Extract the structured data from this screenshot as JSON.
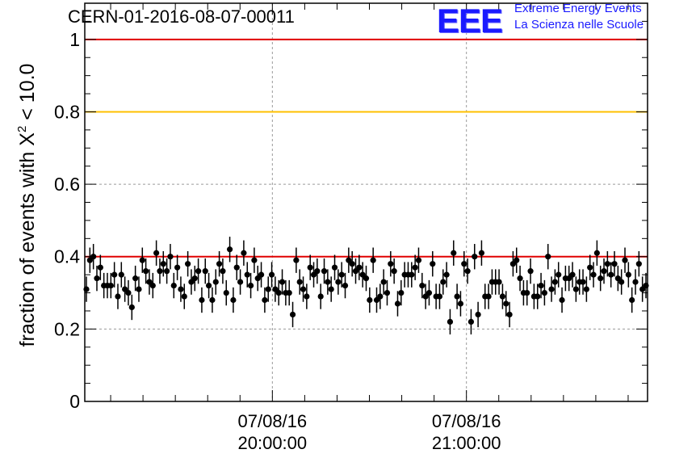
{
  "header": {
    "title": "CERN-01-2016-08-07-00011",
    "logo_mark": "EEE",
    "logo_line1": "Extreme Energy Events",
    "logo_line2": "La Scienza nelle Scuole"
  },
  "colors": {
    "red_line": "#e00000",
    "orange_line": "#ffc000",
    "markers": "#000000",
    "grid": "#9a9a9a",
    "brand": "#1a1aff"
  },
  "chart_data": {
    "type": "scatter",
    "title": "CERN-01-2016-08-07-00011",
    "ylabel_main": "fraction of events with X",
    "ylabel_sup": "2",
    "ylabel_tail": " < 10.0",
    "xlabel": "",
    "ylim": [
      0,
      1.1
    ],
    "xlim_minutes": [
      -58,
      116
    ],
    "grid": true,
    "y_ticks": [
      {
        "value": 0,
        "label": "0"
      },
      {
        "value": 0.2,
        "label": "0.2"
      },
      {
        "value": 0.4,
        "label": "0.4"
      },
      {
        "value": 0.6,
        "label": "0.6"
      },
      {
        "value": 0.8,
        "label": "0.8"
      },
      {
        "value": 1.0,
        "label": "1"
      }
    ],
    "x_ticks": [
      {
        "minutes": 0,
        "date": "07/08/16",
        "time": "20:00:00"
      },
      {
        "minutes": 60,
        "date": "07/08/16",
        "time": "21:00:00"
      }
    ],
    "reference_lines": [
      {
        "y": 1.0,
        "color": "#e00000"
      },
      {
        "y": 0.8,
        "color": "#ffc000"
      },
      {
        "y": 0.4,
        "color": "#e00000"
      }
    ],
    "series": [
      {
        "error": 0.035,
        "y": [
          0.31,
          0.39,
          0.4,
          0.34,
          0.37,
          0.32,
          0.32,
          0.32,
          0.35,
          0.29,
          0.35,
          0.31,
          0.3,
          0.26,
          0.34,
          0.31,
          0.39,
          0.36,
          0.33,
          0.32,
          0.41,
          0.36,
          0.38,
          0.36,
          0.4,
          0.32,
          0.37,
          0.31,
          0.29,
          0.38,
          0.33,
          0.34,
          0.36,
          0.28,
          0.36,
          0.32,
          0.28,
          0.33,
          0.38,
          0.36,
          0.3,
          0.42,
          0.28,
          0.37,
          0.33,
          0.41,
          0.35,
          0.32,
          0.39,
          0.34,
          0.35,
          0.28,
          0.31,
          0.35,
          0.31,
          0.3,
          0.33,
          0.3,
          0.3,
          0.24,
          0.39,
          0.33,
          0.31,
          0.29,
          0.37,
          0.35,
          0.36,
          0.29,
          0.36,
          0.33,
          0.31,
          0.37,
          0.33,
          0.35,
          0.32,
          0.39,
          0.38,
          0.36,
          0.37,
          0.35,
          0.34,
          0.28,
          0.39,
          0.28,
          0.29,
          0.33,
          0.3,
          0.38,
          0.36,
          0.27,
          0.3,
          0.35,
          0.35,
          0.35,
          0.37,
          0.39,
          0.32,
          0.29,
          0.3,
          0.38,
          0.29,
          0.29,
          0.33,
          0.35,
          0.22,
          0.41,
          0.29,
          0.27,
          0.38,
          0.36,
          0.22,
          0.4,
          0.24,
          0.41,
          0.29,
          0.29,
          0.33,
          0.33,
          0.33,
          0.29,
          0.27,
          0.24,
          0.38,
          0.39,
          0.34,
          0.3,
          0.3,
          0.36,
          0.29,
          0.29,
          0.32,
          0.3,
          0.4,
          0.31,
          0.33,
          0.35,
          0.28,
          0.34,
          0.34,
          0.35,
          0.31,
          0.33,
          0.33,
          0.31,
          0.37,
          0.35,
          0.41,
          0.34,
          0.36,
          0.38,
          0.35,
          0.38,
          0.34,
          0.33,
          0.39,
          0.35,
          0.28,
          0.33,
          0.38,
          0.31,
          0.32
        ]
      }
    ]
  }
}
